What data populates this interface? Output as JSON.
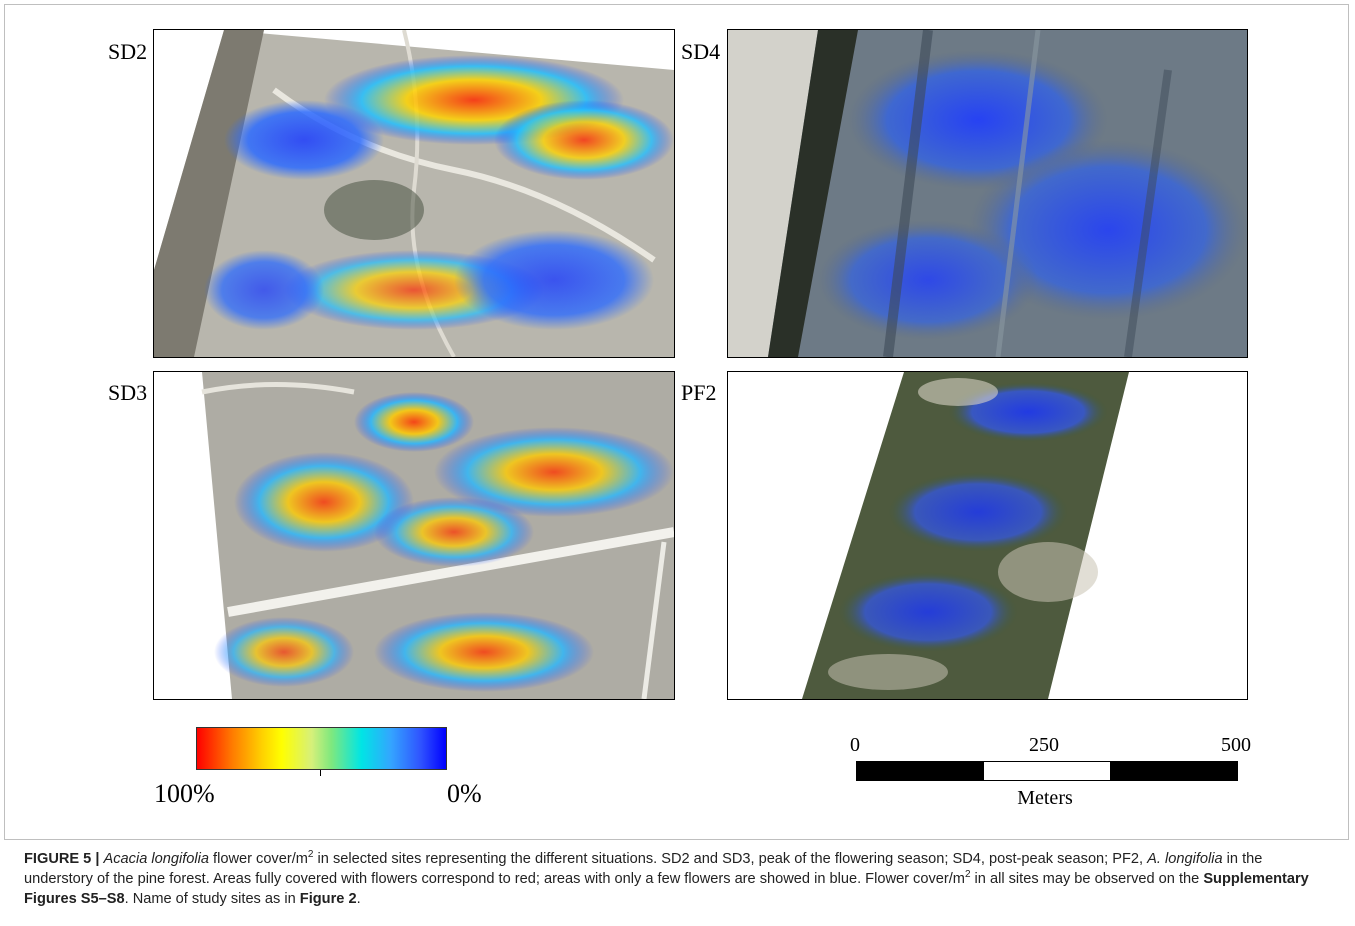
{
  "figure": {
    "panels": [
      {
        "id": "SD2",
        "label": "SD2"
      },
      {
        "id": "SD4",
        "label": "SD4"
      },
      {
        "id": "SD3",
        "label": "SD3"
      },
      {
        "id": "PF2",
        "label": "PF2"
      }
    ],
    "legend": {
      "high_label": "100%",
      "low_label": "0%",
      "high_color": "#ff0000",
      "low_color": "#0000ff"
    },
    "scale": {
      "tick_0": "0",
      "tick_1": "250",
      "tick_2": "500",
      "units": "Meters"
    }
  },
  "caption": {
    "figure_label": "FIGURE 5 |",
    "species": "Acacia longifolia",
    "t1": " flower cover/m",
    "sup1": "2",
    "t2": " in selected sites representing the different situations. SD2 and SD3, peak of the flowering season; SD4, post-peak season; PF2, ",
    "species_abbrev": "A. longifolia",
    "t3": " in the understory of the pine forest. Areas fully covered with flowers correspond to red; areas with only a few flowers are showed in blue. Flower cover/m",
    "sup2": "2",
    "t4": " in all sites may be observed on the ",
    "supp_ref": "Supplementary Figures S5–S8",
    "t5": ". Name of study sites as in ",
    "fig_ref": "Figure 2",
    "t6": "."
  }
}
